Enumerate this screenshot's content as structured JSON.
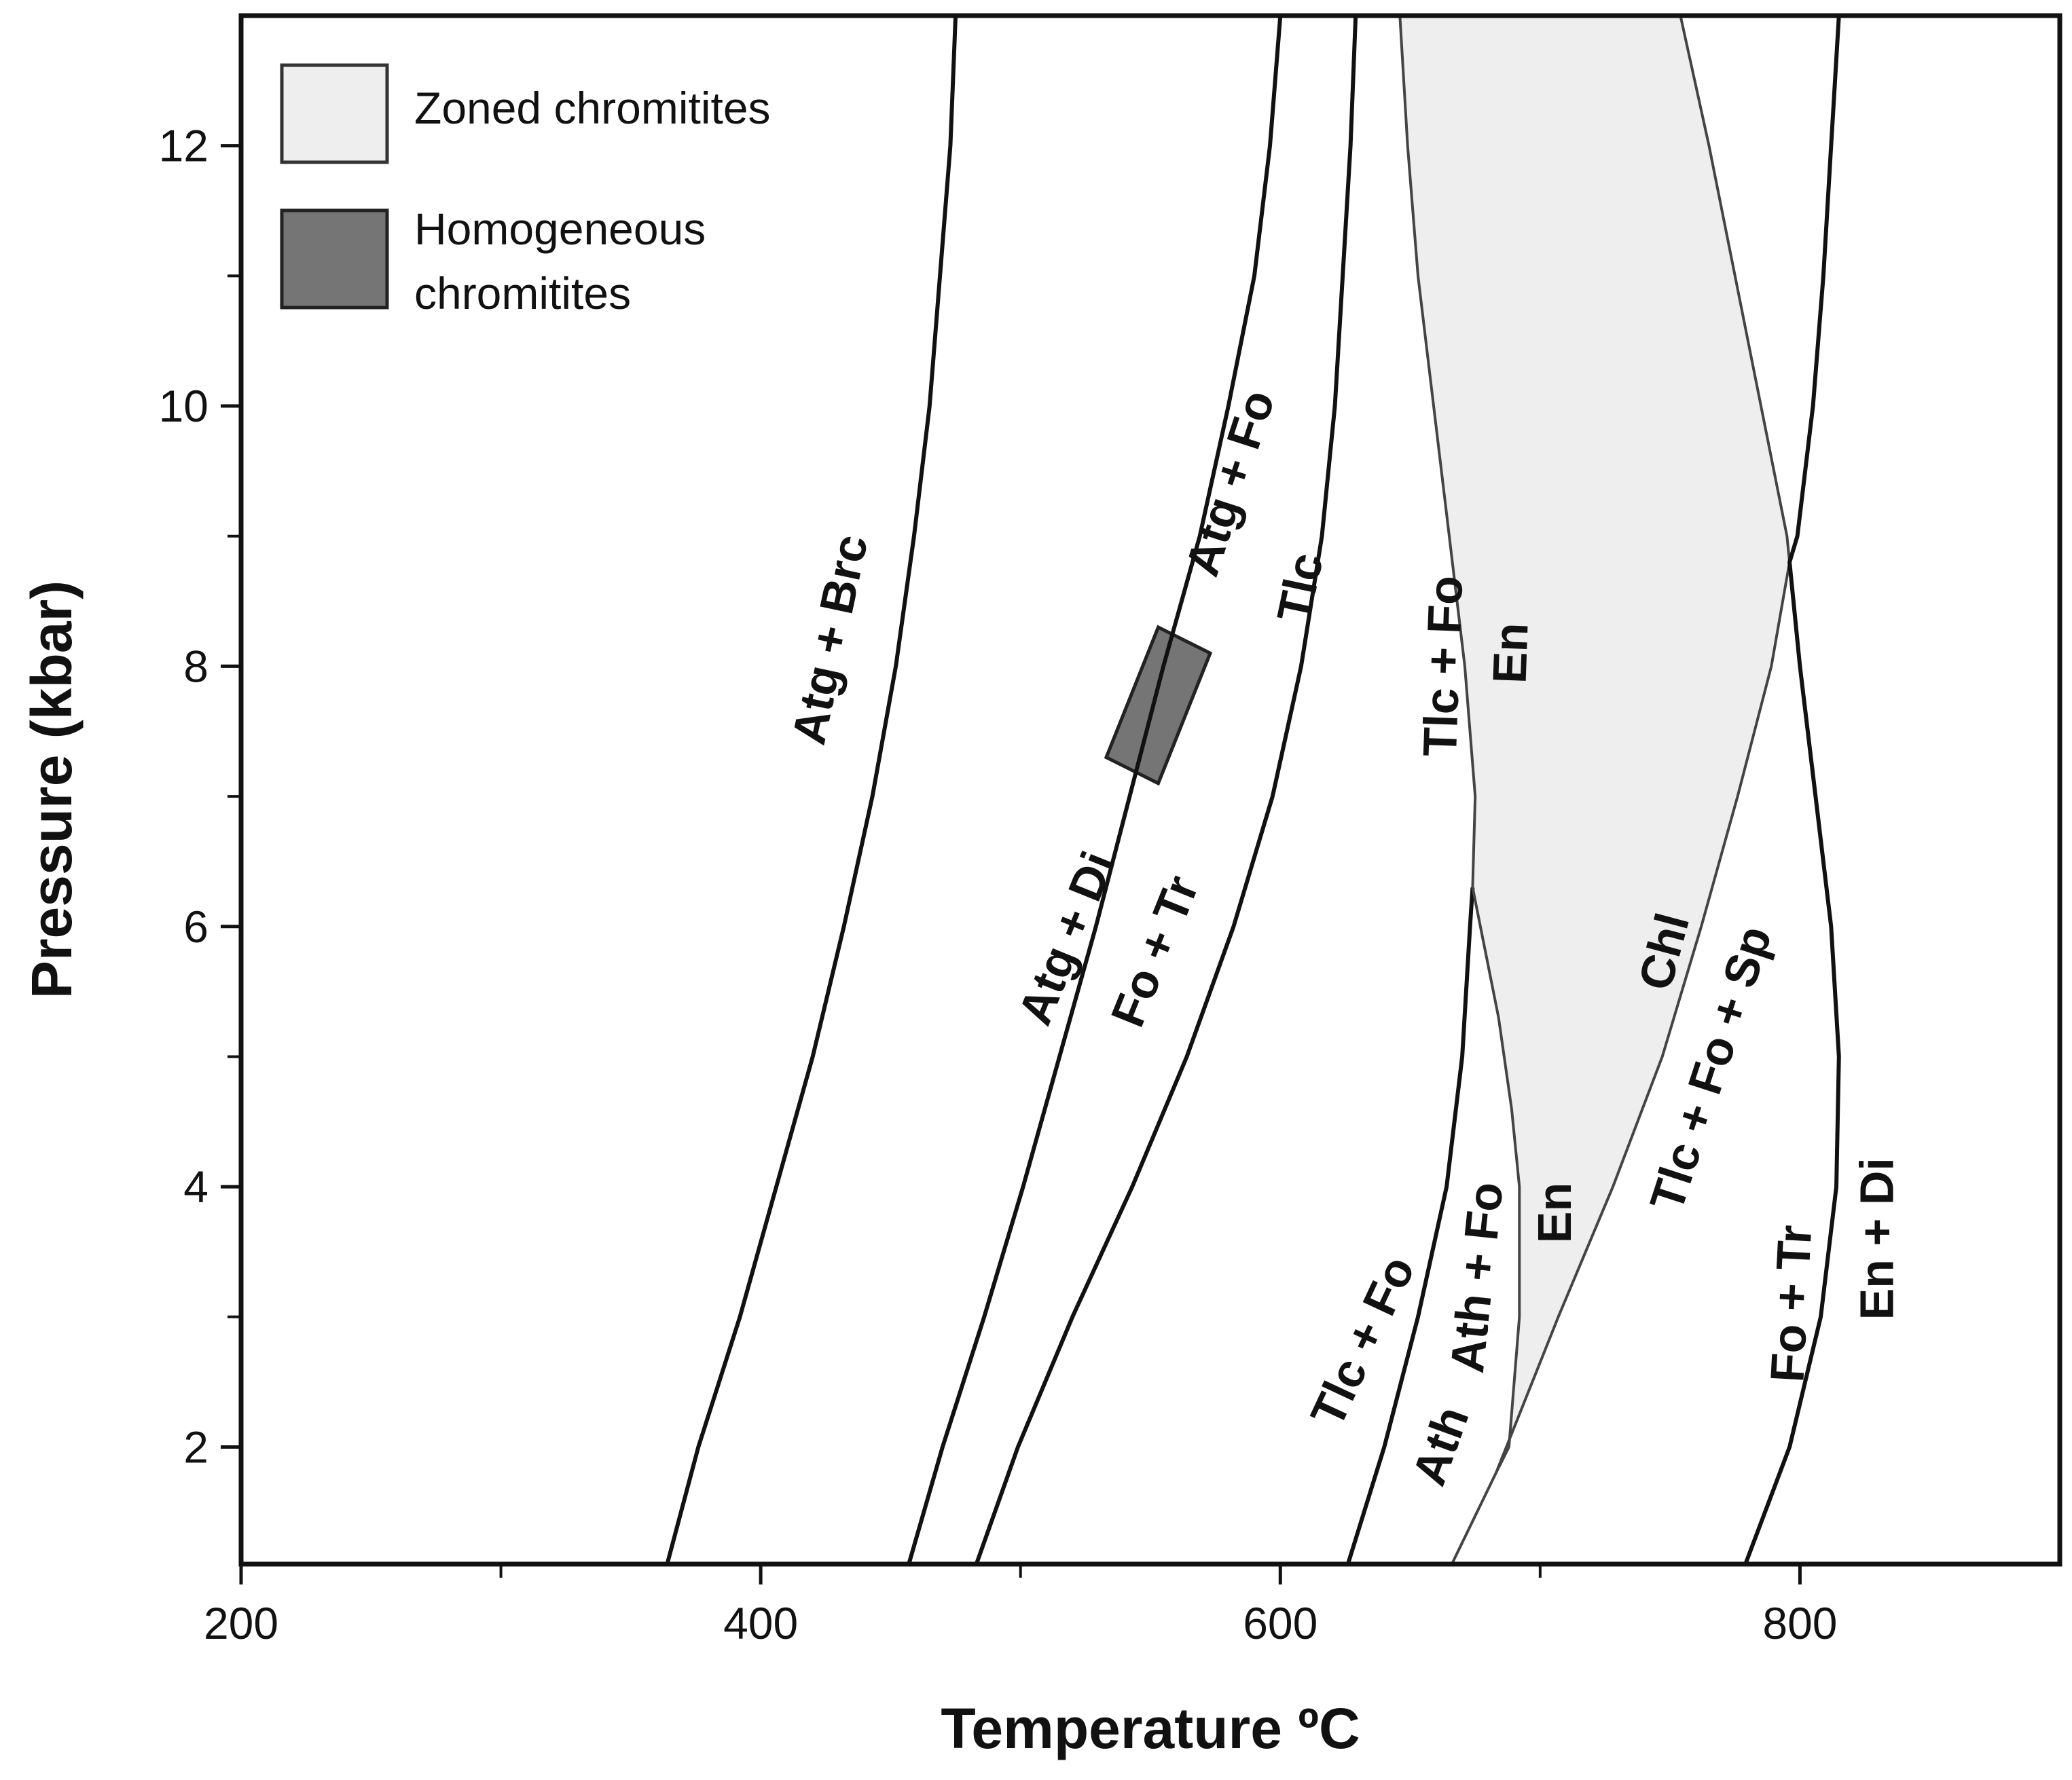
{
  "chart_data": {
    "type": "line",
    "xlabel": "Temperature ºC",
    "ylabel": "Pressure (kbar)",
    "xlim": [
      200,
      900
    ],
    "ylim": [
      1.1,
      13
    ],
    "x_major_ticks": [
      200,
      400,
      600,
      800
    ],
    "x_minor_ticks": [
      300,
      500,
      700
    ],
    "y_major_ticks": [
      2,
      4,
      6,
      8,
      10,
      12
    ],
    "y_minor_ticks": [
      3,
      5,
      7,
      9,
      11
    ],
    "x_tick_labels": [
      "200",
      "400",
      "600",
      "800"
    ],
    "y_tick_labels": [
      "2",
      "4",
      "6",
      "8",
      "10",
      "12"
    ],
    "colors": {
      "zoned": "#eeeeee",
      "homogeneous": "#757575",
      "line": "#111111",
      "zone_edge": "#444444"
    },
    "legend": [
      {
        "label": "Zoned chromitites",
        "color": "#eeeeee"
      },
      {
        "label_line1": "Homogeneous",
        "label_line2": "chromitites",
        "color": "#757575"
      }
    ],
    "series": [
      {
        "name": "Atg + Brc reaction",
        "points": [
          [
            364,
            1.1
          ],
          [
            376,
            2
          ],
          [
            392,
            3
          ],
          [
            406,
            4
          ],
          [
            420,
            5
          ],
          [
            432,
            6
          ],
          [
            443,
            7
          ],
          [
            452,
            8
          ],
          [
            459,
            9
          ],
          [
            465,
            10
          ],
          [
            469,
            11
          ],
          [
            473,
            12
          ],
          [
            475,
            13
          ]
        ]
      },
      {
        "name": "Atg + Di / Fo + Tr reaction",
        "points": [
          [
            457,
            1.1
          ],
          [
            470,
            2
          ],
          [
            486,
            3
          ],
          [
            501,
            4
          ],
          [
            515,
            5
          ],
          [
            529,
            6
          ],
          [
            542,
            7
          ],
          [
            555,
            8
          ],
          [
            569,
            9
          ],
          [
            580,
            10
          ],
          [
            590,
            11
          ],
          [
            596,
            12
          ],
          [
            600,
            13
          ]
        ]
      },
      {
        "name": "Atg + Fo / Tlc reaction",
        "points": [
          [
            483,
            1.1
          ],
          [
            499,
            2
          ],
          [
            520,
            3
          ],
          [
            543,
            4
          ],
          [
            564,
            5
          ],
          [
            582,
            6
          ],
          [
            597,
            7
          ],
          [
            608,
            8
          ],
          [
            616,
            9
          ],
          [
            621,
            10
          ],
          [
            624,
            11
          ],
          [
            627,
            12
          ],
          [
            629,
            13
          ]
        ]
      },
      {
        "name": "Tlc + Fo / En reaction",
        "points": [
          [
            674,
            6.3
          ],
          [
            675,
            7
          ],
          [
            671,
            8
          ],
          [
            665,
            9
          ],
          [
            659,
            10
          ],
          [
            653,
            11
          ],
          [
            649,
            12
          ],
          [
            646,
            13
          ]
        ]
      },
      {
        "name": "Tlc + Fo / Ath reaction",
        "points": [
          [
            626,
            1.1
          ],
          [
            640,
            2
          ],
          [
            653,
            3
          ],
          [
            664,
            4
          ],
          [
            670,
            5
          ],
          [
            673,
            6
          ],
          [
            674,
            6.3
          ]
        ]
      },
      {
        "name": "Ath + Fo / En reaction",
        "points": [
          [
            666,
            1.1
          ],
          [
            683,
            1.8
          ],
          [
            688,
            2
          ],
          [
            692,
            3
          ],
          [
            692,
            4
          ],
          [
            689,
            4.6
          ],
          [
            684,
            5.3
          ],
          [
            674,
            6.3
          ]
        ]
      },
      {
        "name": "Chl / Tlc + Fo + Sp reaction",
        "points": [
          [
            683,
            1.8
          ],
          [
            707,
            3
          ],
          [
            728,
            4
          ],
          [
            747,
            5
          ],
          [
            762,
            6
          ],
          [
            776,
            7
          ],
          [
            789,
            8
          ],
          [
            796,
            8.8
          ],
          [
            795,
            9
          ],
          [
            785,
            10
          ],
          [
            775,
            11
          ],
          [
            765,
            12
          ],
          [
            754,
            13
          ]
        ]
      },
      {
        "name": "Fo + Tr / En + Di reaction",
        "points": [
          [
            779,
            1.1
          ],
          [
            796,
            2
          ],
          [
            808,
            3
          ],
          [
            814,
            4
          ],
          [
            815,
            5
          ],
          [
            812,
            6
          ],
          [
            806,
            7
          ],
          [
            800,
            8
          ],
          [
            796,
            8.8
          ],
          [
            799,
            9
          ],
          [
            805,
            10
          ],
          [
            809,
            11
          ],
          [
            812,
            12
          ],
          [
            815,
            13
          ]
        ]
      }
    ],
    "zoned_region": [
      [
        683,
        1.8
      ],
      [
        707,
        3
      ],
      [
        728,
        4
      ],
      [
        747,
        5
      ],
      [
        762,
        6
      ],
      [
        776,
        7
      ],
      [
        789,
        8
      ],
      [
        796,
        8.8
      ],
      [
        795,
        9
      ],
      [
        785,
        10
      ],
      [
        775,
        11
      ],
      [
        765,
        12
      ],
      [
        754,
        13
      ],
      [
        646,
        13
      ],
      [
        649,
        12
      ],
      [
        653,
        11
      ],
      [
        659,
        10
      ],
      [
        665,
        9
      ],
      [
        671,
        8
      ],
      [
        675,
        7
      ],
      [
        674,
        6.3
      ],
      [
        684,
        5.3
      ],
      [
        689,
        4.6
      ],
      [
        692,
        4
      ],
      [
        692,
        3
      ],
      [
        688,
        2
      ]
    ],
    "homogeneous_box": [
      [
        533,
        7.3
      ],
      [
        553,
        7.1
      ],
      [
        573,
        8.1
      ],
      [
        553,
        8.3
      ]
    ],
    "labels": [
      {
        "text": "Atg + Brc",
        "x": 428,
        "y": 8.2,
        "angle": -78
      },
      {
        "text": "Atg + Di",
        "x": 519,
        "y": 5.9,
        "angle": -68
      },
      {
        "text": "Fo + Tr",
        "x": 553,
        "y": 5.8,
        "angle": -68
      },
      {
        "text": "Atg + Fo",
        "x": 582,
        "y": 9.4,
        "angle": -72
      },
      {
        "text": "Tlc",
        "x": 609,
        "y": 8.6,
        "angle": -78
      },
      {
        "text": "Tlc + Fo",
        "x": 664,
        "y": 8.0,
        "angle": -88
      },
      {
        "text": "En",
        "x": 690,
        "y": 8.1,
        "angle": -88
      },
      {
        "text": "Tlc + Fo",
        "x": 633,
        "y": 2.8,
        "angle": -65
      },
      {
        "text": "Ath",
        "x": 663,
        "y": 2.0,
        "angle": -70
      },
      {
        "text": "Ath + Fo",
        "x": 677,
        "y": 3.3,
        "angle": -84
      },
      {
        "text": "En",
        "x": 707,
        "y": 3.8,
        "angle": -90
      },
      {
        "text": "Chl",
        "x": 749,
        "y": 5.8,
        "angle": -75
      },
      {
        "text": "Tlc + Fo + Sp",
        "x": 767,
        "y": 4.9,
        "angle": -72
      },
      {
        "text": "Fo + Tr",
        "x": 798,
        "y": 3.1,
        "angle": -87
      },
      {
        "text": "En + Di",
        "x": 831,
        "y": 3.6,
        "angle": -90
      }
    ]
  }
}
